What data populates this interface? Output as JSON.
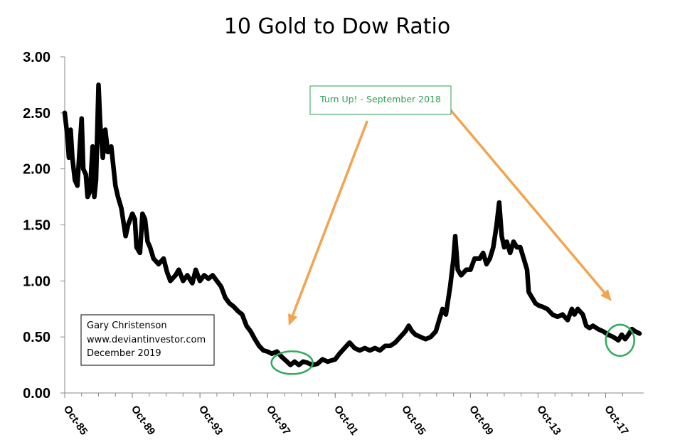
{
  "chart_data": {
    "type": "line",
    "title": "10 Gold to Dow Ratio",
    "xlabel": "",
    "ylabel": "",
    "ylim": [
      0,
      3
    ],
    "xlim": [
      1985.75,
      2020.0
    ],
    "y_ticks": [
      "0.00",
      "0.50",
      "1.00",
      "1.50",
      "2.00",
      "2.50",
      "3.00"
    ],
    "x_ticks": [
      {
        "label": "Oct-85",
        "x": 1985.75
      },
      {
        "label": "Oct-89",
        "x": 1989.75
      },
      {
        "label": "Oct-93",
        "x": 1993.75
      },
      {
        "label": "Oct-97",
        "x": 1997.75
      },
      {
        "label": "Oct-01",
        "x": 2001.75
      },
      {
        "label": "Oct-05",
        "x": 2005.75
      },
      {
        "label": "Oct-09",
        "x": 2009.75
      },
      {
        "label": "Oct-13",
        "x": 2013.75
      },
      {
        "label": "Oct-17",
        "x": 2017.75
      }
    ],
    "grid": false,
    "series": [
      {
        "name": "10 Gold to Dow Ratio",
        "color": "#000000",
        "points": [
          [
            1985.75,
            2.5
          ],
          [
            1985.9,
            2.3
          ],
          [
            1986.0,
            2.1
          ],
          [
            1986.1,
            2.35
          ],
          [
            1986.2,
            2.1
          ],
          [
            1986.35,
            1.9
          ],
          [
            1986.5,
            1.85
          ],
          [
            1986.6,
            2.1
          ],
          [
            1986.75,
            2.45
          ],
          [
            1986.85,
            2.0
          ],
          [
            1987.0,
            1.95
          ],
          [
            1987.1,
            1.75
          ],
          [
            1987.25,
            1.8
          ],
          [
            1987.4,
            2.2
          ],
          [
            1987.5,
            1.75
          ],
          [
            1987.6,
            1.9
          ],
          [
            1987.75,
            2.75
          ],
          [
            1987.85,
            2.4
          ],
          [
            1988.0,
            2.1
          ],
          [
            1988.15,
            2.35
          ],
          [
            1988.3,
            2.15
          ],
          [
            1988.5,
            2.2
          ],
          [
            1988.75,
            1.85
          ],
          [
            1988.9,
            1.75
          ],
          [
            1989.1,
            1.65
          ],
          [
            1989.35,
            1.4
          ],
          [
            1989.5,
            1.5
          ],
          [
            1989.75,
            1.6
          ],
          [
            1989.9,
            1.55
          ],
          [
            1990.0,
            1.3
          ],
          [
            1990.2,
            1.25
          ],
          [
            1990.35,
            1.6
          ],
          [
            1990.5,
            1.55
          ],
          [
            1990.65,
            1.35
          ],
          [
            1990.8,
            1.3
          ],
          [
            1991.0,
            1.2
          ],
          [
            1991.3,
            1.15
          ],
          [
            1991.6,
            1.2
          ],
          [
            1991.8,
            1.08
          ],
          [
            1992.0,
            1.0
          ],
          [
            1992.3,
            1.05
          ],
          [
            1992.5,
            1.1
          ],
          [
            1992.75,
            1.0
          ],
          [
            1993.0,
            1.05
          ],
          [
            1993.3,
            0.98
          ],
          [
            1993.5,
            1.1
          ],
          [
            1993.75,
            1.0
          ],
          [
            1994.0,
            1.05
          ],
          [
            1994.25,
            1.02
          ],
          [
            1994.5,
            1.05
          ],
          [
            1994.75,
            1.0
          ],
          [
            1995.0,
            0.95
          ],
          [
            1995.25,
            0.85
          ],
          [
            1995.5,
            0.8
          ],
          [
            1995.75,
            0.77
          ],
          [
            1996.0,
            0.73
          ],
          [
            1996.25,
            0.7
          ],
          [
            1996.5,
            0.6
          ],
          [
            1996.75,
            0.55
          ],
          [
            1997.0,
            0.48
          ],
          [
            1997.25,
            0.42
          ],
          [
            1997.5,
            0.38
          ],
          [
            1997.75,
            0.37
          ],
          [
            1998.0,
            0.35
          ],
          [
            1998.3,
            0.37
          ],
          [
            1998.6,
            0.32
          ],
          [
            1998.9,
            0.28
          ],
          [
            1999.1,
            0.25
          ],
          [
            1999.35,
            0.28
          ],
          [
            1999.6,
            0.25
          ],
          [
            1999.85,
            0.28
          ],
          [
            2000.1,
            0.27
          ],
          [
            2000.4,
            0.25
          ],
          [
            2000.7,
            0.26
          ],
          [
            2001.0,
            0.3
          ],
          [
            2001.3,
            0.28
          ],
          [
            2001.75,
            0.3
          ],
          [
            2002.0,
            0.35
          ],
          [
            2002.3,
            0.4
          ],
          [
            2002.6,
            0.45
          ],
          [
            2002.9,
            0.4
          ],
          [
            2003.2,
            0.38
          ],
          [
            2003.5,
            0.4
          ],
          [
            2003.8,
            0.38
          ],
          [
            2004.1,
            0.4
          ],
          [
            2004.4,
            0.38
          ],
          [
            2004.7,
            0.42
          ],
          [
            2005.0,
            0.42
          ],
          [
            2005.3,
            0.45
          ],
          [
            2005.6,
            0.5
          ],
          [
            2005.9,
            0.55
          ],
          [
            2006.1,
            0.6
          ],
          [
            2006.3,
            0.55
          ],
          [
            2006.5,
            0.52
          ],
          [
            2006.8,
            0.5
          ],
          [
            2007.1,
            0.48
          ],
          [
            2007.4,
            0.5
          ],
          [
            2007.7,
            0.55
          ],
          [
            2007.9,
            0.65
          ],
          [
            2008.1,
            0.75
          ],
          [
            2008.3,
            0.7
          ],
          [
            2008.55,
            0.95
          ],
          [
            2008.75,
            1.2
          ],
          [
            2008.85,
            1.4
          ],
          [
            2009.0,
            1.1
          ],
          [
            2009.2,
            1.05
          ],
          [
            2009.5,
            1.1
          ],
          [
            2009.75,
            1.1
          ],
          [
            2010.0,
            1.2
          ],
          [
            2010.3,
            1.2
          ],
          [
            2010.5,
            1.25
          ],
          [
            2010.7,
            1.15
          ],
          [
            2010.9,
            1.2
          ],
          [
            2011.1,
            1.3
          ],
          [
            2011.3,
            1.5
          ],
          [
            2011.45,
            1.7
          ],
          [
            2011.6,
            1.4
          ],
          [
            2011.75,
            1.3
          ],
          [
            2011.9,
            1.35
          ],
          [
            2012.1,
            1.25
          ],
          [
            2012.3,
            1.35
          ],
          [
            2012.5,
            1.3
          ],
          [
            2012.7,
            1.3
          ],
          [
            2012.9,
            1.2
          ],
          [
            2013.1,
            1.1
          ],
          [
            2013.2,
            0.9
          ],
          [
            2013.4,
            0.85
          ],
          [
            2013.6,
            0.8
          ],
          [
            2013.8,
            0.78
          ],
          [
            2014.0,
            0.77
          ],
          [
            2014.3,
            0.75
          ],
          [
            2014.6,
            0.7
          ],
          [
            2014.9,
            0.68
          ],
          [
            2015.2,
            0.7
          ],
          [
            2015.5,
            0.65
          ],
          [
            2015.75,
            0.75
          ],
          [
            2015.9,
            0.7
          ],
          [
            2016.1,
            0.75
          ],
          [
            2016.4,
            0.7
          ],
          [
            2016.6,
            0.6
          ],
          [
            2016.8,
            0.58
          ],
          [
            2017.0,
            0.6
          ],
          [
            2017.3,
            0.57
          ],
          [
            2017.6,
            0.55
          ],
          [
            2017.9,
            0.52
          ],
          [
            2018.2,
            0.5
          ],
          [
            2018.5,
            0.47
          ],
          [
            2018.7,
            0.52
          ],
          [
            2018.9,
            0.48
          ],
          [
            2019.1,
            0.52
          ],
          [
            2019.3,
            0.57
          ],
          [
            2019.5,
            0.55
          ],
          [
            2019.75,
            0.53
          ]
        ]
      }
    ],
    "annotations": [
      {
        "text": "Turn Up! - September 2018",
        "color": "#2e9e57"
      },
      {
        "text": "Gary Christenson"
      },
      {
        "text": "www.deviantinvestor.com"
      },
      {
        "text": "December 2019"
      }
    ],
    "highlight_circles": [
      {
        "x": 1999.2,
        "y": 0.27,
        "color": "#2eab5b"
      },
      {
        "x": 2018.6,
        "y": 0.47,
        "color": "#2eab5b"
      }
    ],
    "arrows": [
      {
        "from": [
          2003.65,
          2.43
        ],
        "to": [
          1999.0,
          0.6
        ],
        "color": "#f2a450"
      },
      {
        "from": [
          2008.05,
          2.62
        ],
        "to": [
          2018.1,
          0.82
        ],
        "color": "#f2a450"
      }
    ]
  }
}
